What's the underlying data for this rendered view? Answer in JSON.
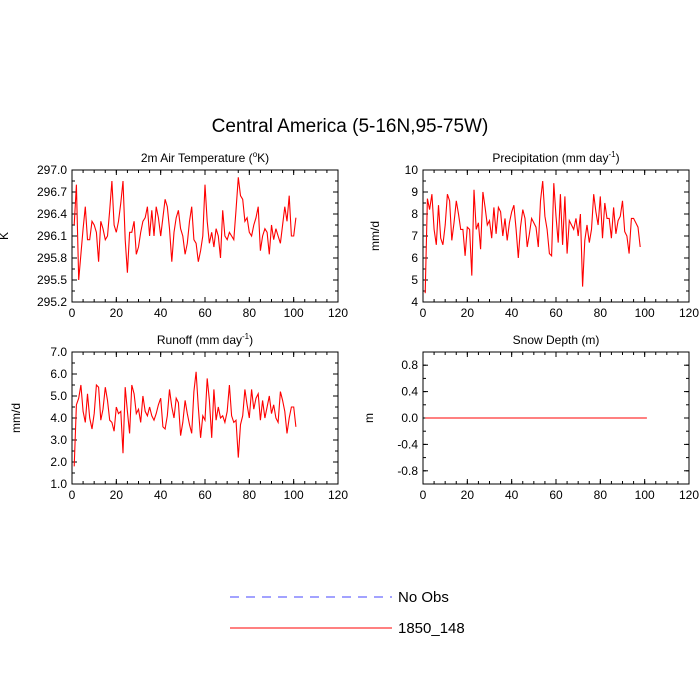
{
  "title": "Central America (5-16N,95-75W)",
  "legend": [
    {
      "label": "No Obs",
      "color": "#4444ff",
      "style": "dashed"
    },
    {
      "label": "1850_148",
      "color": "#ff0000",
      "style": "solid"
    }
  ],
  "series_color": "#ff0000",
  "chart_data": [
    {
      "type": "line",
      "title": "2m Air Temperature (°K)",
      "title_main": "2m Air Temperature (",
      "title_sup": "o",
      "title_end": "K)",
      "ylabel": "K",
      "xlim": [
        0,
        120
      ],
      "ylim": [
        295.2,
        297.0
      ],
      "xticks": [
        "0",
        "20",
        "40",
        "60",
        "80",
        "100",
        "120"
      ],
      "yticks": [
        "295.2",
        "295.5",
        "295.8",
        "296.1",
        "296.4",
        "296.7",
        "297.0"
      ],
      "series": [
        {
          "name": "1850_148",
          "x_start": 1,
          "values": [
            296.25,
            296.8,
            295.5,
            295.85,
            296.2,
            296.5,
            296.05,
            296.05,
            296.3,
            296.25,
            296.15,
            295.75,
            296.3,
            296.2,
            296.05,
            296.1,
            296.45,
            296.85,
            296.25,
            296.15,
            296.3,
            296.55,
            296.85,
            296.05,
            295.6,
            296.15,
            296.15,
            296.3,
            295.85,
            295.95,
            296.15,
            296.3,
            296.35,
            296.5,
            296.1,
            296.45,
            296.1,
            296.5,
            296.35,
            296.1,
            296.35,
            296.6,
            296.5,
            296.2,
            295.75,
            296.15,
            296.35,
            296.45,
            296.2,
            296.1,
            295.85,
            296.0,
            296.3,
            296.5,
            296.05,
            296.0,
            295.75,
            295.9,
            296.1,
            296.8,
            296.3,
            296.0,
            296.15,
            295.95,
            296.2,
            296.1,
            295.8,
            296.45,
            296.1,
            296.05,
            296.15,
            296.1,
            296.05,
            296.45,
            296.9,
            296.65,
            296.6,
            296.3,
            296.35,
            296.15,
            296.1,
            296.25,
            296.35,
            296.5,
            295.9,
            296.1,
            296.2,
            296.15,
            295.85,
            296.25,
            296.05,
            296.2,
            296.1,
            296.0,
            296.25,
            296.5,
            296.3,
            296.65,
            296.1,
            296.1,
            296.35
          ]
        }
      ]
    },
    {
      "type": "line",
      "title": "Precipitation (mm day-1)",
      "title_main": "Precipitation (mm day",
      "title_sup": "-1",
      "title_end": ")",
      "ylabel": "mm/d",
      "xlim": [
        0,
        120
      ],
      "ylim": [
        4,
        10
      ],
      "xticks": [
        "0",
        "20",
        "40",
        "60",
        "80",
        "100",
        "120"
      ],
      "yticks": [
        "4",
        "5",
        "6",
        "7",
        "8",
        "9",
        "10"
      ],
      "series": [
        {
          "name": "1850_148",
          "x_start": 1,
          "values": [
            4.4,
            8.7,
            8.2,
            8.9,
            7.3,
            6.6,
            8.4,
            6.9,
            6.6,
            7.5,
            8.9,
            8.6,
            6.8,
            7.6,
            8.6,
            8.0,
            7.3,
            7.3,
            6.1,
            7.4,
            7.3,
            5.2,
            9.1,
            7.3,
            7.6,
            6.4,
            9.0,
            8.3,
            7.5,
            7.7,
            6.9,
            8.3,
            7.1,
            8.3,
            8.1,
            7.0,
            7.8,
            6.8,
            7.6,
            8.1,
            8.4,
            7.3,
            6.0,
            7.4,
            8.2,
            7.8,
            6.5,
            7.1,
            7.8,
            7.6,
            7.4,
            6.5,
            8.6,
            9.5,
            7.9,
            7.3,
            6.2,
            6.1,
            9.4,
            7.9,
            6.7,
            8.9,
            6.6,
            8.8,
            6.2,
            7.7,
            7.5,
            7.3,
            7.8,
            7.0,
            8.0,
            4.7,
            6.8,
            7.5,
            6.7,
            7.3,
            8.9,
            8.1,
            7.5,
            8.8,
            6.9,
            8.5,
            7.8,
            7.8,
            6.9,
            8.3,
            7.1,
            7.7,
            7.9,
            8.6,
            7.2,
            7.0,
            6.2,
            7.8,
            7.8,
            7.6,
            7.4,
            6.5
          ]
        }
      ]
    },
    {
      "type": "line",
      "title": "Runoff (mm day-1)",
      "title_main": "Runoff (mm day",
      "title_sup": "-1",
      "title_end": ")",
      "ylabel": "mm/d",
      "xlim": [
        0,
        120
      ],
      "ylim": [
        1.0,
        7.0
      ],
      "xticks": [
        "0",
        "20",
        "40",
        "60",
        "80",
        "100",
        "120"
      ],
      "yticks": [
        "1.0",
        "2.0",
        "3.0",
        "4.0",
        "5.0",
        "6.0",
        "7.0"
      ],
      "series": [
        {
          "name": "1850_148",
          "x_start": 1,
          "values": [
            1.8,
            4.6,
            4.9,
            5.5,
            4.3,
            3.8,
            5.1,
            4.0,
            3.5,
            4.2,
            5.5,
            5.4,
            3.9,
            4.4,
            5.4,
            4.8,
            3.9,
            3.8,
            3.4,
            4.5,
            4.2,
            4.3,
            2.4,
            5.4,
            4.3,
            3.3,
            5.5,
            5.1,
            4.2,
            4.4,
            3.8,
            5.0,
            4.3,
            4.1,
            4.5,
            4.1,
            3.9,
            4.2,
            4.6,
            4.9,
            3.6,
            3.5,
            4.1,
            5.3,
            4.5,
            4.0,
            4.9,
            4.7,
            3.2,
            3.8,
            4.8,
            4.2,
            3.7,
            3.3,
            5.2,
            6.1,
            4.5,
            3.1,
            4.1,
            3.9,
            5.8,
            4.8,
            3.1,
            5.3,
            3.9,
            4.5,
            4.0,
            4.1,
            3.8,
            4.3,
            5.5,
            4.1,
            3.8,
            3.9,
            2.2,
            3.7,
            4.1,
            5.3,
            4.6,
            4.0,
            5.3,
            4.4,
            4.9,
            5.1,
            3.9,
            4.8,
            4.0,
            4.5,
            5.0,
            4.2,
            4.6,
            4.0,
            3.8,
            5.2,
            4.8,
            4.3,
            3.3,
            4.0,
            4.5,
            4.5,
            3.6
          ]
        }
      ]
    },
    {
      "type": "line",
      "title": "Snow Depth (m)",
      "title_main": "Snow Depth (m)",
      "title_sup": "",
      "title_end": "",
      "ylabel": "m",
      "xlim": [
        0,
        120
      ],
      "ylim": [
        -1.0,
        1.0
      ],
      "xticks": [
        "0",
        "20",
        "40",
        "60",
        "80",
        "100",
        "120"
      ],
      "yticks": [
        "-0.8",
        "-0.4",
        "0.0",
        "0.4",
        "0.8"
      ],
      "series": [
        {
          "name": "1850_148",
          "x_start": 1,
          "values": [
            0.0,
            0.0
          ]
        }
      ]
    }
  ]
}
